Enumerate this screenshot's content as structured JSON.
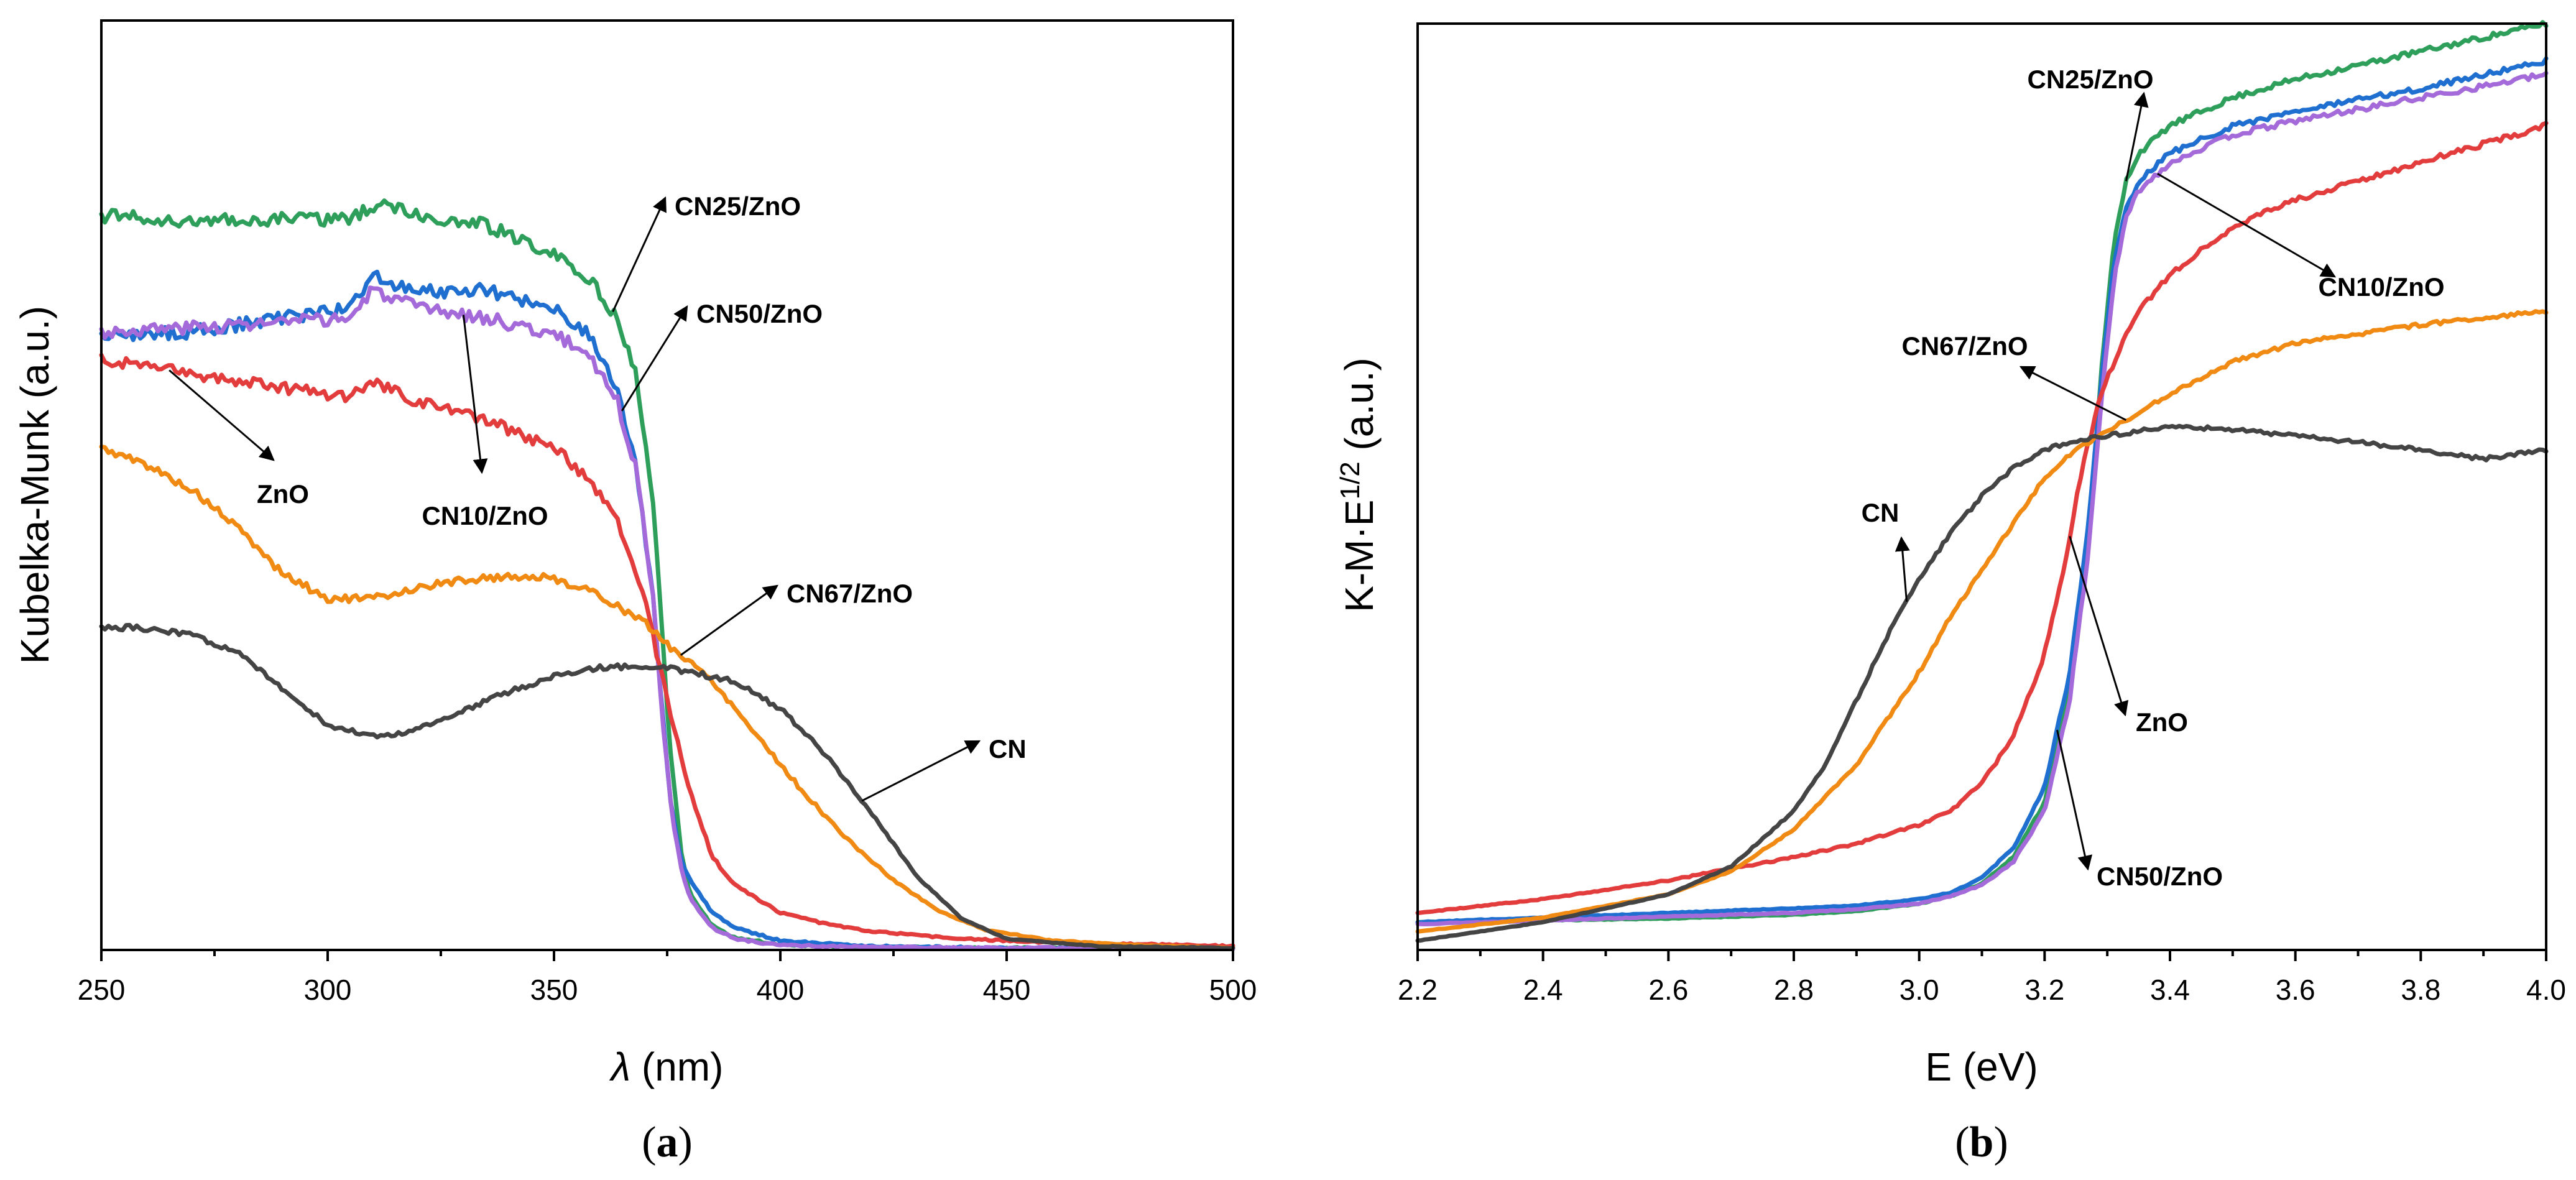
{
  "chart_data": [
    {
      "type": "line",
      "panel": "a",
      "caption_letter": "a",
      "xlabel_symbol": "λ",
      "xlabel_unit": " (nm)",
      "ylabel": "Kubelka-Munk (a.u.)",
      "xlim": [
        250,
        500
      ],
      "ylim": [
        0,
        1.0
      ],
      "xticks": [
        "250",
        "300",
        "350",
        "400",
        "450",
        "500"
      ],
      "xtick_values": [
        250,
        300,
        350,
        400,
        450,
        500
      ],
      "series": [
        {
          "name": "CN25/ZnO",
          "color": "#2e9e5b",
          "noise": 0.007,
          "seed": 1,
          "x": [
            250,
            270,
            290,
            305,
            312,
            320,
            335,
            350,
            358,
            364,
            368,
            372,
            374,
            376,
            378,
            380,
            385,
            390,
            400,
            420,
            450,
            500
          ],
          "y": [
            0.79,
            0.784,
            0.786,
            0.786,
            0.805,
            0.79,
            0.78,
            0.748,
            0.72,
            0.68,
            0.62,
            0.48,
            0.33,
            0.2,
            0.11,
            0.06,
            0.026,
            0.013,
            0.006,
            0.003,
            0.002,
            0.002
          ]
        },
        {
          "name": "CN50/ZnO",
          "color": "#1f6fd0",
          "noise": 0.007,
          "seed": 2,
          "x": [
            250,
            270,
            290,
            305,
            310,
            320,
            335,
            350,
            358,
            364,
            368,
            372,
            374,
            376,
            378,
            380,
            385,
            390,
            400,
            420,
            450,
            500
          ],
          "y": [
            0.66,
            0.665,
            0.68,
            0.69,
            0.725,
            0.708,
            0.71,
            0.69,
            0.66,
            0.6,
            0.52,
            0.38,
            0.25,
            0.15,
            0.1,
            0.075,
            0.04,
            0.024,
            0.01,
            0.004,
            0.002,
            0.002
          ]
        },
        {
          "name": "CN10/ZnO",
          "color": "#a46ad9",
          "noise": 0.007,
          "seed": 3,
          "x": [
            250,
            270,
            290,
            305,
            310,
            320,
            335,
            350,
            358,
            364,
            368,
            372,
            374,
            376,
            378,
            380,
            385,
            390,
            400,
            420,
            450,
            500
          ],
          "y": [
            0.665,
            0.67,
            0.675,
            0.68,
            0.71,
            0.69,
            0.68,
            0.662,
            0.64,
            0.59,
            0.52,
            0.38,
            0.25,
            0.15,
            0.09,
            0.055,
            0.024,
            0.012,
            0.005,
            0.003,
            0.002,
            0.002
          ]
        },
        {
          "name": "ZnO",
          "color": "#e23c3c",
          "noise": 0.006,
          "seed": 4,
          "x": [
            250,
            270,
            290,
            305,
            310,
            320,
            335,
            350,
            358,
            364,
            370,
            374,
            377,
            380,
            385,
            390,
            400,
            410,
            420,
            440,
            460,
            500
          ],
          "y": [
            0.635,
            0.62,
            0.605,
            0.595,
            0.61,
            0.59,
            0.57,
            0.54,
            0.505,
            0.46,
            0.38,
            0.29,
            0.23,
            0.17,
            0.1,
            0.07,
            0.04,
            0.028,
            0.02,
            0.012,
            0.008,
            0.004
          ]
        },
        {
          "name": "CN67/ZnO",
          "color": "#f08a12",
          "noise": 0.004,
          "seed": 5,
          "x": [
            250,
            260,
            270,
            280,
            290,
            300,
            310,
            320,
            330,
            340,
            350,
            360,
            370,
            376,
            385,
            395,
            405,
            415,
            425,
            435,
            445,
            460,
            480,
            500
          ],
          "y": [
            0.54,
            0.522,
            0.495,
            0.455,
            0.405,
            0.378,
            0.378,
            0.39,
            0.398,
            0.402,
            0.4,
            0.382,
            0.352,
            0.325,
            0.29,
            0.23,
            0.17,
            0.118,
            0.075,
            0.042,
            0.022,
            0.01,
            0.005,
            0.002
          ]
        },
        {
          "name": "CN",
          "color": "#444444",
          "noise": 0.003,
          "seed": 6,
          "x": [
            250,
            260,
            270,
            280,
            290,
            300,
            310,
            315,
            320,
            330,
            340,
            350,
            360,
            370,
            380,
            390,
            400,
            410,
            420,
            430,
            440,
            450,
            470,
            500
          ],
          "y": [
            0.348,
            0.346,
            0.338,
            0.32,
            0.282,
            0.242,
            0.23,
            0.232,
            0.238,
            0.258,
            0.278,
            0.294,
            0.304,
            0.305,
            0.3,
            0.288,
            0.26,
            0.21,
            0.148,
            0.08,
            0.034,
            0.012,
            0.004,
            0.002
          ]
        }
      ],
      "annotations": [
        {
          "label": "CN25/ZnO",
          "series": "CN25/ZnO"
        },
        {
          "label": "CN50/ZnO",
          "series": "CN50/ZnO"
        },
        {
          "label": "CN10/ZnO",
          "series": "CN10/ZnO"
        },
        {
          "label": "ZnO",
          "series": "ZnO"
        },
        {
          "label": "CN67/ZnO",
          "series": "CN67/ZnO"
        },
        {
          "label": "CN",
          "series": "CN"
        }
      ]
    },
    {
      "type": "line",
      "panel": "b",
      "caption_letter": "b",
      "xlabel": "E (eV)",
      "ylabel_base": "K-M·E",
      "ylabel_sup": "1/2",
      "ylabel_unit": " (a.u.)",
      "xlim": [
        2.2,
        4.0
      ],
      "ylim": [
        0,
        1.0
      ],
      "xticks": [
        "2.2",
        "2.4",
        "2.6",
        "2.8",
        "3.0",
        "3.2",
        "3.4",
        "3.6",
        "3.8",
        "4.0"
      ],
      "xtick_values": [
        2.2,
        2.4,
        2.6,
        2.8,
        3.0,
        3.2,
        3.4,
        3.6,
        3.8,
        4.0
      ],
      "series": [
        {
          "name": "CN25/ZnO",
          "color": "#2e9e5b",
          "noise": 0.003,
          "seed": 11,
          "x": [
            2.2,
            2.4,
            2.6,
            2.8,
            2.9,
            3.0,
            3.05,
            3.1,
            3.15,
            3.2,
            3.24,
            3.27,
            3.29,
            3.31,
            3.33,
            3.35,
            3.4,
            3.5,
            3.6,
            3.8,
            4.0
          ],
          "y": [
            0.03,
            0.032,
            0.034,
            0.038,
            0.042,
            0.05,
            0.058,
            0.072,
            0.1,
            0.16,
            0.28,
            0.45,
            0.62,
            0.76,
            0.83,
            0.86,
            0.89,
            0.92,
            0.94,
            0.97,
            1.0
          ]
        },
        {
          "name": "CN50/ZnO",
          "color": "#1f6fd0",
          "noise": 0.003,
          "seed": 12,
          "x": [
            2.2,
            2.4,
            2.6,
            2.8,
            2.9,
            3.0,
            3.05,
            3.1,
            3.15,
            3.2,
            3.24,
            3.27,
            3.29,
            3.31,
            3.33,
            3.35,
            3.4,
            3.5,
            3.6,
            3.8,
            4.0
          ],
          "y": [
            0.03,
            0.035,
            0.04,
            0.045,
            0.048,
            0.055,
            0.062,
            0.078,
            0.11,
            0.175,
            0.3,
            0.46,
            0.61,
            0.74,
            0.8,
            0.83,
            0.86,
            0.89,
            0.905,
            0.93,
            0.96
          ]
        },
        {
          "name": "CN10/ZnO",
          "color": "#a46ad9",
          "noise": 0.003,
          "seed": 13,
          "x": [
            2.2,
            2.4,
            2.6,
            2.8,
            2.9,
            3.0,
            3.05,
            3.1,
            3.15,
            3.2,
            3.24,
            3.27,
            3.29,
            3.31,
            3.33,
            3.35,
            3.4,
            3.5,
            3.6,
            3.8,
            4.0
          ],
          "y": [
            0.028,
            0.032,
            0.036,
            0.04,
            0.044,
            0.05,
            0.058,
            0.07,
            0.095,
            0.15,
            0.27,
            0.43,
            0.59,
            0.72,
            0.79,
            0.82,
            0.85,
            0.88,
            0.895,
            0.92,
            0.945
          ]
        },
        {
          "name": "ZnO",
          "color": "#e23c3c",
          "noise": 0.003,
          "seed": 14,
          "x": [
            2.2,
            2.4,
            2.6,
            2.7,
            2.8,
            2.9,
            3.0,
            3.05,
            3.1,
            3.15,
            3.2,
            3.23,
            3.26,
            3.29,
            3.32,
            3.35,
            3.4,
            3.5,
            3.6,
            3.8,
            4.0
          ],
          "y": [
            0.04,
            0.055,
            0.075,
            0.088,
            0.1,
            0.115,
            0.135,
            0.15,
            0.18,
            0.23,
            0.32,
            0.41,
            0.52,
            0.6,
            0.65,
            0.69,
            0.73,
            0.78,
            0.81,
            0.85,
            0.89
          ]
        },
        {
          "name": "CN67/ZnO",
          "color": "#f08a12",
          "noise": 0.002,
          "seed": 15,
          "x": [
            2.2,
            2.4,
            2.6,
            2.7,
            2.8,
            2.9,
            3.0,
            3.05,
            3.1,
            3.15,
            3.2,
            3.25,
            3.3,
            3.35,
            3.4,
            3.5,
            3.6,
            3.8,
            4.0
          ],
          "y": [
            0.02,
            0.035,
            0.06,
            0.085,
            0.13,
            0.2,
            0.3,
            0.36,
            0.41,
            0.46,
            0.51,
            0.54,
            0.56,
            0.58,
            0.6,
            0.635,
            0.655,
            0.675,
            0.69
          ]
        },
        {
          "name": "CN",
          "color": "#444444",
          "noise": 0.002,
          "seed": 16,
          "x": [
            2.2,
            2.4,
            2.6,
            2.7,
            2.8,
            2.85,
            2.9,
            2.95,
            3.0,
            3.05,
            3.1,
            3.15,
            3.2,
            3.25,
            3.3,
            3.4,
            3.5,
            3.6,
            3.7,
            3.8,
            3.9,
            4.0
          ],
          "y": [
            0.01,
            0.03,
            0.06,
            0.09,
            0.15,
            0.2,
            0.27,
            0.34,
            0.4,
            0.45,
            0.49,
            0.52,
            0.54,
            0.55,
            0.555,
            0.565,
            0.562,
            0.555,
            0.548,
            0.54,
            0.53,
            0.54
          ]
        }
      ],
      "annotations": [
        {
          "label": "CN25/ZnO",
          "series": "CN25/ZnO"
        },
        {
          "label": "CN10/ZnO",
          "series": "CN10/ZnO"
        },
        {
          "label": "CN67/ZnO",
          "series": "CN67/ZnO"
        },
        {
          "label": "CN",
          "series": "CN"
        },
        {
          "label": "ZnO",
          "series": "ZnO"
        },
        {
          "label": "CN50/ZnO",
          "series": "CN50/ZnO"
        }
      ]
    }
  ]
}
